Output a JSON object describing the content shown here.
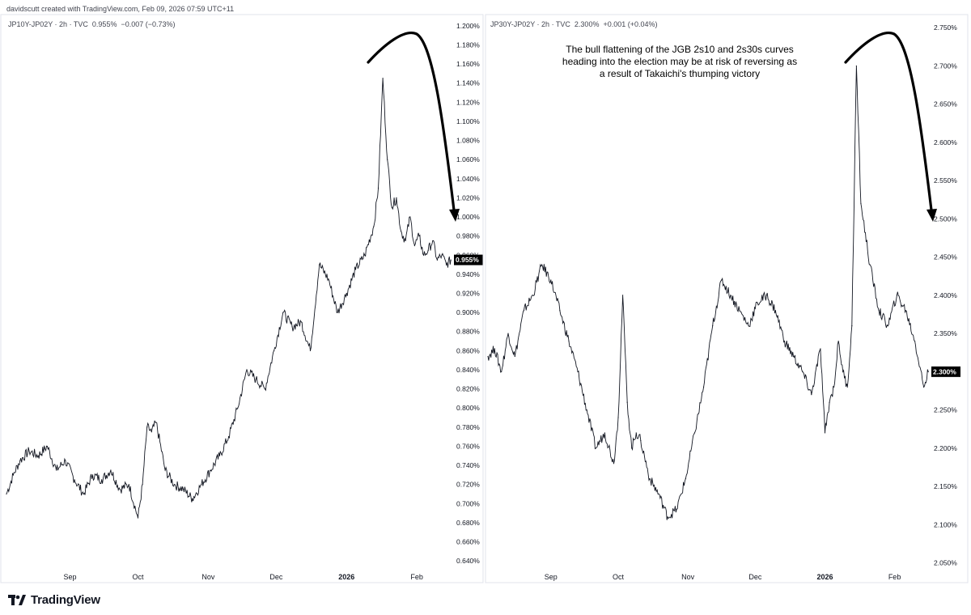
{
  "header": {
    "credit": "davidscutt created with TradingView.com, Feb 09, 2026 07:59 UTC+11"
  },
  "brand": {
    "name": "TradingView",
    "icon": "tradingview-logo-icon"
  },
  "annotation": "The bull flattening of the JGB 2s10 and 2s30s curves heading into the election may be at risk of reversing as a result of Takaichi's thumping victory",
  "colors": {
    "line": "#131722",
    "badge_bg": "#000000",
    "badge_text": "#ffffff",
    "grid_border": "#e0e3eb"
  },
  "chart_data": [
    {
      "type": "line",
      "symbol": "JP10Y-JP02Y",
      "interval": "2h",
      "source": "TVC",
      "last": "0.955%",
      "change": "−0.007 (−0.73%)",
      "ylim": [
        0.63,
        1.21
      ],
      "yticks": [
        "1.200%",
        "1.180%",
        "1.160%",
        "1.140%",
        "1.120%",
        "1.100%",
        "1.080%",
        "1.060%",
        "1.040%",
        "1.020%",
        "1.000%",
        "0.980%",
        "0.960%",
        "0.940%",
        "0.920%",
        "0.900%",
        "0.880%",
        "0.860%",
        "0.840%",
        "0.820%",
        "0.800%",
        "0.780%",
        "0.760%",
        "0.740%",
        "0.720%",
        "0.700%",
        "0.680%",
        "0.660%",
        "0.640%"
      ],
      "ytick_values": [
        1.2,
        1.18,
        1.16,
        1.14,
        1.12,
        1.1,
        1.08,
        1.06,
        1.04,
        1.02,
        1.0,
        0.98,
        0.96,
        0.94,
        0.92,
        0.9,
        0.88,
        0.86,
        0.84,
        0.82,
        0.8,
        0.78,
        0.76,
        0.74,
        0.72,
        0.7,
        0.68,
        0.66,
        0.64
      ],
      "xticks": [
        "Sep",
        "Oct",
        "Nov",
        "Dec",
        "2026",
        "Feb"
      ],
      "xtick_days": [
        28,
        58,
        89,
        119,
        150,
        181
      ],
      "xlim_days": [
        0,
        197
      ],
      "x_days": [
        0,
        3,
        6,
        10,
        14,
        18,
        22,
        26,
        30,
        34,
        38,
        42,
        46,
        50,
        54,
        58,
        60,
        62,
        64,
        66,
        70,
        74,
        78,
        82,
        86,
        90,
        94,
        98,
        102,
        106,
        110,
        114,
        118,
        122,
        126,
        130,
        134,
        138,
        142,
        146,
        150,
        154,
        158,
        162,
        164,
        166,
        168,
        170,
        172,
        174,
        176,
        178,
        180,
        182,
        184,
        186,
        188,
        190,
        192,
        194,
        196
      ],
      "y": [
        0.71,
        0.73,
        0.745,
        0.755,
        0.75,
        0.76,
        0.735,
        0.745,
        0.725,
        0.71,
        0.73,
        0.725,
        0.735,
        0.715,
        0.72,
        0.685,
        0.72,
        0.78,
        0.775,
        0.785,
        0.735,
        0.72,
        0.715,
        0.705,
        0.72,
        0.735,
        0.75,
        0.77,
        0.8,
        0.84,
        0.83,
        0.82,
        0.86,
        0.9,
        0.885,
        0.89,
        0.86,
        0.95,
        0.935,
        0.9,
        0.92,
        0.945,
        0.96,
        0.99,
        1.03,
        1.145,
        1.06,
        1.01,
        1.02,
        0.985,
        0.975,
        1.0,
        0.97,
        0.98,
        0.96,
        0.965,
        0.975,
        0.955,
        0.96,
        0.95,
        0.955
      ]
    },
    {
      "type": "line",
      "symbol": "JP30Y-JP02Y",
      "interval": "2h",
      "source": "TVC",
      "last": "2.300%",
      "change": "+0.001 (+0.04%)",
      "ylim": [
        2.04,
        2.765
      ],
      "yticks": [
        "2.750%",
        "2.700%",
        "2.650%",
        "2.600%",
        "2.550%",
        "2.500%",
        "2.450%",
        "2.400%",
        "2.350%",
        "2.300%",
        "2.250%",
        "2.200%",
        "2.150%",
        "2.100%",
        "2.050%"
      ],
      "ytick_values": [
        2.75,
        2.7,
        2.65,
        2.6,
        2.55,
        2.5,
        2.45,
        2.4,
        2.35,
        2.3,
        2.25,
        2.2,
        2.15,
        2.1,
        2.05
      ],
      "xticks": [
        "Sep",
        "Oct",
        "Nov",
        "Dec",
        "2026",
        "Feb"
      ],
      "xtick_days": [
        28,
        58,
        89,
        119,
        150,
        181
      ],
      "xlim_days": [
        0,
        197
      ],
      "x_days": [
        0,
        3,
        6,
        9,
        12,
        16,
        20,
        24,
        28,
        32,
        36,
        40,
        44,
        48,
        52,
        56,
        58,
        60,
        62,
        64,
        66,
        68,
        72,
        76,
        80,
        84,
        88,
        92,
        96,
        100,
        104,
        108,
        112,
        116,
        120,
        124,
        128,
        132,
        136,
        140,
        144,
        148,
        150,
        152,
        154,
        156,
        158,
        160,
        162,
        164,
        166,
        170,
        174,
        178,
        182,
        186,
        190,
        194,
        196
      ],
      "y": [
        2.32,
        2.33,
        2.3,
        2.35,
        2.32,
        2.38,
        2.4,
        2.44,
        2.42,
        2.38,
        2.34,
        2.3,
        2.25,
        2.2,
        2.22,
        2.18,
        2.24,
        2.4,
        2.26,
        2.2,
        2.22,
        2.21,
        2.16,
        2.14,
        2.11,
        2.12,
        2.16,
        2.22,
        2.28,
        2.36,
        2.42,
        2.4,
        2.38,
        2.36,
        2.39,
        2.4,
        2.38,
        2.34,
        2.32,
        2.3,
        2.27,
        2.33,
        2.22,
        2.26,
        2.28,
        2.34,
        2.3,
        2.28,
        2.36,
        2.7,
        2.52,
        2.44,
        2.38,
        2.36,
        2.4,
        2.38,
        2.34,
        2.28,
        2.3
      ]
    }
  ]
}
